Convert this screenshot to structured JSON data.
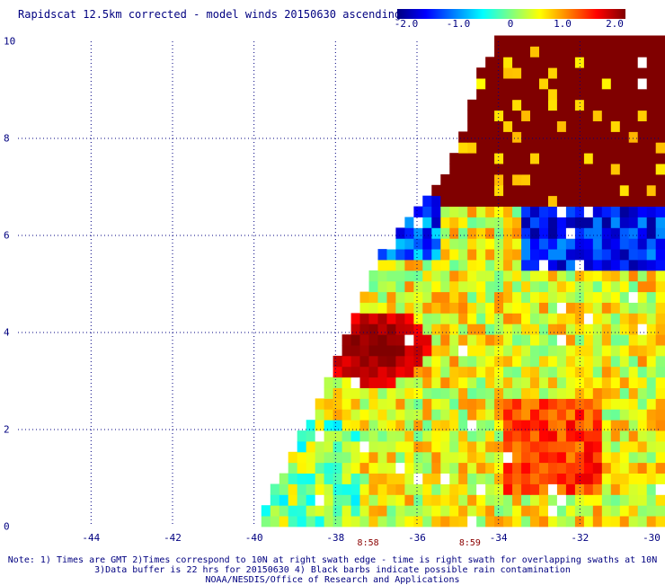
{
  "title": "Rapidscat 12.5km corrected - model winds 20150630 ascending",
  "colorbar": {
    "min": -2.0,
    "max": 2.0,
    "tick_labels": [
      "-2.0",
      "-1.0",
      "0",
      "1.0",
      "2.0"
    ],
    "colors": [
      "#000080",
      "#0000ff",
      "#0080ff",
      "#00ffff",
      "#80ff80",
      "#ffff00",
      "#ff8000",
      "#ff0000",
      "#800000"
    ]
  },
  "chart_data": {
    "type": "heatmap",
    "title": "Rapidscat 12.5km corrected - model winds 20150630 ascending",
    "variable": "wind difference",
    "xlim": [
      -45,
      -30
    ],
    "ylim": [
      0,
      10
    ],
    "x_ticks": [
      "-44",
      "-42",
      "-40",
      "-38",
      "-36",
      "-34",
      "-32",
      "-30"
    ],
    "y_ticks": [
      "0",
      "2",
      "4",
      "6",
      "8",
      "10"
    ],
    "grid": true,
    "swath_times": [
      {
        "label": "8:58",
        "lon": -37.2
      },
      {
        "label": "8:59",
        "lon": -34.7
      }
    ]
  },
  "notes": [
    "Note: 1) Times are GMT 2)Times correspond to 10N at right swath edge - time is right swath for overlapping swaths at 10N",
    "3)Data buffer is 22 hrs for 20150630 4) Black barbs indicate possible rain contamination",
    "NOAA/NESDIS/Office of Research and Applications"
  ]
}
